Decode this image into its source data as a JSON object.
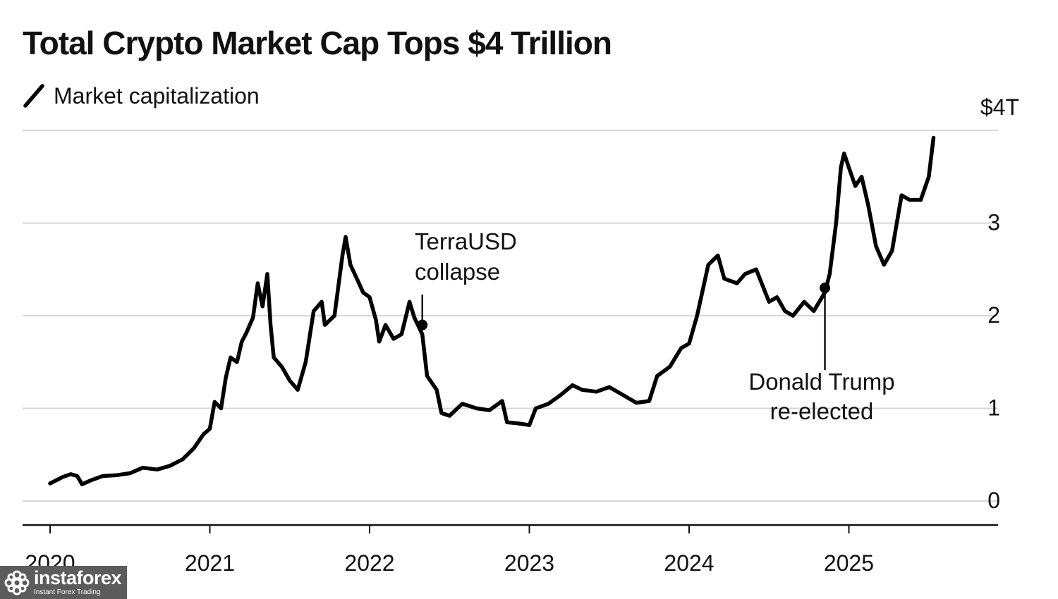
{
  "header": {
    "title": "Total Crypto Market Cap Tops $4 Trillion",
    "legend_label": "Market capitalization"
  },
  "watermark": {
    "brand": "instaforex",
    "tagline": "Instant Forex Trading",
    "icon": "gear-flower-logo-icon"
  },
  "chart_data": {
    "type": "line",
    "title": "Total Crypto Market Cap Tops $4 Trillion",
    "subtitle": "Market capitalization",
    "xlabel": "",
    "ylabel": "",
    "xlim": [
      2020.0,
      2025.95
    ],
    "ylim": [
      -0.25,
      4.0
    ],
    "x_ticks": [
      {
        "value": 2020,
        "label": "2020"
      },
      {
        "value": 2021,
        "label": "2021"
      },
      {
        "value": 2022,
        "label": "2022"
      },
      {
        "value": 2023,
        "label": "2023"
      },
      {
        "value": 2024,
        "label": "2024"
      },
      {
        "value": 2025,
        "label": "2025"
      }
    ],
    "y_ticks": [
      {
        "value": 4,
        "label": "$4T"
      },
      {
        "value": 3,
        "label": "3"
      },
      {
        "value": 2,
        "label": "2"
      },
      {
        "value": 1,
        "label": "1"
      },
      {
        "value": 0,
        "label": "0"
      }
    ],
    "grid": true,
    "legend": "top-left",
    "colors": {
      "line": "#000000",
      "grid": "#d6d6d6"
    },
    "series": [
      {
        "name": "Market capitalization",
        "points": [
          [
            2020.0,
            0.19
          ],
          [
            2020.08,
            0.26
          ],
          [
            2020.13,
            0.29
          ],
          [
            2020.17,
            0.27
          ],
          [
            2020.2,
            0.18
          ],
          [
            2020.25,
            0.22
          ],
          [
            2020.33,
            0.27
          ],
          [
            2020.42,
            0.28
          ],
          [
            2020.5,
            0.3
          ],
          [
            2020.58,
            0.36
          ],
          [
            2020.67,
            0.34
          ],
          [
            2020.75,
            0.38
          ],
          [
            2020.83,
            0.45
          ],
          [
            2020.9,
            0.57
          ],
          [
            2020.96,
            0.72
          ],
          [
            2021.0,
            0.78
          ],
          [
            2021.03,
            1.07
          ],
          [
            2021.07,
            1.0
          ],
          [
            2021.1,
            1.33
          ],
          [
            2021.13,
            1.55
          ],
          [
            2021.17,
            1.5
          ],
          [
            2021.2,
            1.72
          ],
          [
            2021.23,
            1.82
          ],
          [
            2021.27,
            1.98
          ],
          [
            2021.3,
            2.35
          ],
          [
            2021.33,
            2.1
          ],
          [
            2021.36,
            2.45
          ],
          [
            2021.38,
            1.9
          ],
          [
            2021.4,
            1.55
          ],
          [
            2021.45,
            1.45
          ],
          [
            2021.5,
            1.3
          ],
          [
            2021.55,
            1.2
          ],
          [
            2021.6,
            1.5
          ],
          [
            2021.65,
            2.05
          ],
          [
            2021.7,
            2.15
          ],
          [
            2021.72,
            1.9
          ],
          [
            2021.78,
            2.0
          ],
          [
            2021.83,
            2.65
          ],
          [
            2021.85,
            2.85
          ],
          [
            2021.88,
            2.55
          ],
          [
            2021.92,
            2.4
          ],
          [
            2021.96,
            2.25
          ],
          [
            2022.0,
            2.2
          ],
          [
            2022.04,
            1.95
          ],
          [
            2022.06,
            1.72
          ],
          [
            2022.1,
            1.9
          ],
          [
            2022.15,
            1.75
          ],
          [
            2022.2,
            1.8
          ],
          [
            2022.25,
            2.15
          ],
          [
            2022.28,
            1.98
          ],
          [
            2022.33,
            1.8
          ],
          [
            2022.36,
            1.35
          ],
          [
            2022.42,
            1.2
          ],
          [
            2022.45,
            0.95
          ],
          [
            2022.5,
            0.92
          ],
          [
            2022.58,
            1.05
          ],
          [
            2022.67,
            1.0
          ],
          [
            2022.75,
            0.98
          ],
          [
            2022.83,
            1.08
          ],
          [
            2022.86,
            0.85
          ],
          [
            2022.92,
            0.84
          ],
          [
            2023.0,
            0.82
          ],
          [
            2023.04,
            1.0
          ],
          [
            2023.12,
            1.05
          ],
          [
            2023.2,
            1.15
          ],
          [
            2023.27,
            1.25
          ],
          [
            2023.33,
            1.2
          ],
          [
            2023.42,
            1.18
          ],
          [
            2023.5,
            1.23
          ],
          [
            2023.58,
            1.15
          ],
          [
            2023.67,
            1.06
          ],
          [
            2023.75,
            1.08
          ],
          [
            2023.8,
            1.35
          ],
          [
            2023.88,
            1.45
          ],
          [
            2023.95,
            1.65
          ],
          [
            2024.0,
            1.7
          ],
          [
            2024.05,
            2.0
          ],
          [
            2024.12,
            2.55
          ],
          [
            2024.18,
            2.65
          ],
          [
            2024.22,
            2.4
          ],
          [
            2024.3,
            2.35
          ],
          [
            2024.35,
            2.45
          ],
          [
            2024.42,
            2.5
          ],
          [
            2024.5,
            2.15
          ],
          [
            2024.55,
            2.2
          ],
          [
            2024.6,
            2.05
          ],
          [
            2024.65,
            2.0
          ],
          [
            2024.72,
            2.15
          ],
          [
            2024.78,
            2.05
          ],
          [
            2024.85,
            2.25
          ],
          [
            2024.88,
            2.45
          ],
          [
            2024.92,
            3.0
          ],
          [
            2024.95,
            3.6
          ],
          [
            2024.97,
            3.75
          ],
          [
            2025.0,
            3.6
          ],
          [
            2025.04,
            3.4
          ],
          [
            2025.08,
            3.5
          ],
          [
            2025.12,
            3.2
          ],
          [
            2025.17,
            2.75
          ],
          [
            2025.22,
            2.55
          ],
          [
            2025.27,
            2.7
          ],
          [
            2025.33,
            3.3
          ],
          [
            2025.38,
            3.25
          ],
          [
            2025.45,
            3.25
          ],
          [
            2025.5,
            3.5
          ],
          [
            2025.53,
            3.92
          ]
        ]
      }
    ],
    "annotations": [
      {
        "text": [
          "TerraUSD",
          "collapse"
        ],
        "x": 2022.33,
        "y": 1.9
      },
      {
        "text": [
          "Donald Trump",
          "re-elected"
        ],
        "x": 2024.85,
        "y": 2.3
      }
    ]
  }
}
